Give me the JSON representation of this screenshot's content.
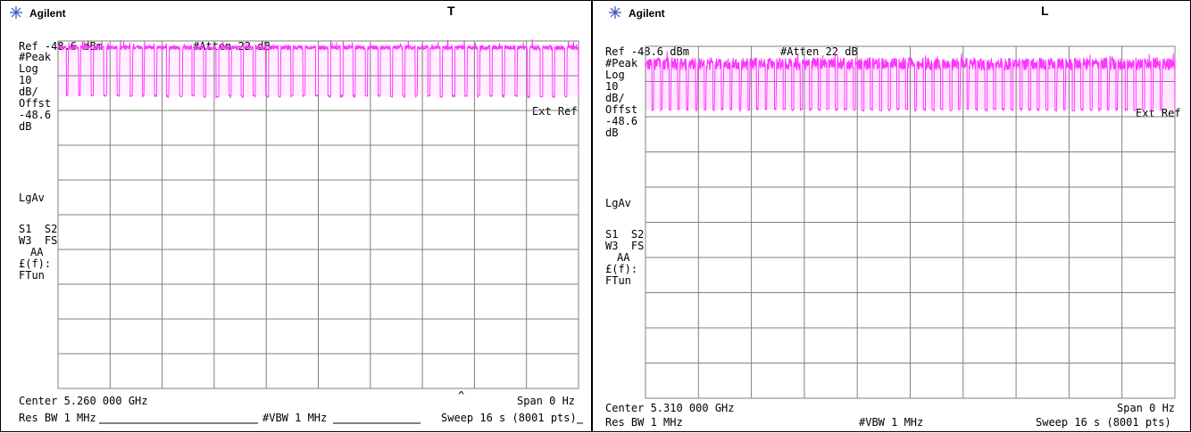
{
  "colors": {
    "trace": "#ff33ff",
    "grid": "#808080",
    "frame": "#000000",
    "logo": "#3b4fb8"
  },
  "panels": [
    {
      "brand": "Agilent",
      "trace_label": "T",
      "ref": "Ref -48.6 dBm",
      "atten": "#Atten 22 dB",
      "left_labels": [
        "#Peak",
        "Log",
        "10",
        "dB/",
        "Offst",
        "-48.6",
        "dB",
        "LgAv",
        "S1  S2",
        "W3  FS",
        "AA",
        "£(f):",
        "FTun"
      ],
      "ext_ref": "Ext Ref",
      "center": "Center 5.260 000 GHz",
      "span": "Span 0 Hz",
      "res_bw": "Res BW 1 MHz",
      "vbw": "#VBW 1 MHz",
      "sweep": "Sweep 16 s (8001 pts)",
      "caret": "^"
    },
    {
      "brand": "Agilent",
      "trace_label": "L",
      "ref": "Ref -48.6 dBm",
      "atten": "#Atten 22 dB",
      "left_labels": [
        "#Peak",
        "Log",
        "10",
        "dB/",
        "Offst",
        "-48.6",
        "dB",
        "LgAv",
        "S1  S2",
        "W3  FS",
        "AA",
        "£(f):",
        "FTun"
      ],
      "ext_ref": "Ext Ref",
      "center": "Center 5.310 000 GHz",
      "span": "Span 0 Hz",
      "res_bw": "Res BW 1 MHz",
      "vbw": "#VBW 1 MHz",
      "sweep": "Sweep 16 s (8001 pts)",
      "caret": ""
    }
  ],
  "chart_data": [
    {
      "type": "line",
      "trace_label": "T",
      "x_unit": "s",
      "xlim": [
        0,
        16
      ],
      "ylim": [
        -148.6,
        -48.6
      ],
      "ydiv": 10,
      "xdiv": 10,
      "grid": true,
      "high_level_dbm": -50.5,
      "low_level_dbm": -64.5,
      "bursts_s": [
        [
          0.0,
          0.26
        ],
        [
          0.32,
          0.64
        ],
        [
          0.7,
          1.02
        ],
        [
          1.09,
          1.41
        ],
        [
          1.5,
          1.82
        ],
        [
          1.9,
          2.22
        ],
        [
          2.3,
          2.6
        ],
        [
          2.66,
          2.97
        ],
        [
          3.04,
          3.34
        ],
        [
          3.42,
          3.74
        ],
        [
          3.83,
          4.12
        ],
        [
          4.18,
          4.48
        ],
        [
          4.55,
          4.86
        ],
        [
          4.94,
          5.26
        ],
        [
          5.33,
          5.63
        ],
        [
          5.7,
          6.0
        ],
        [
          6.07,
          6.39
        ],
        [
          6.47,
          6.78
        ],
        [
          6.85,
          7.16
        ],
        [
          7.22,
          7.53
        ],
        [
          7.6,
          7.92
        ],
        [
          8.0,
          8.3
        ],
        [
          8.38,
          8.68
        ],
        [
          8.76,
          9.07
        ],
        [
          9.14,
          9.45
        ],
        [
          9.52,
          9.84
        ],
        [
          9.91,
          10.22
        ],
        [
          10.29,
          10.6
        ],
        [
          10.67,
          10.98
        ],
        [
          11.05,
          11.37
        ],
        [
          11.44,
          11.75
        ],
        [
          11.82,
          12.12
        ],
        [
          12.2,
          12.51
        ],
        [
          12.58,
          12.9
        ],
        [
          12.97,
          13.28
        ],
        [
          13.35,
          13.66
        ],
        [
          13.73,
          14.05
        ],
        [
          14.12,
          14.43
        ],
        [
          14.5,
          14.82
        ],
        [
          14.9,
          15.2
        ],
        [
          15.27,
          15.58
        ],
        [
          15.65,
          16.0
        ]
      ]
    },
    {
      "type": "line",
      "trace_label": "L",
      "x_unit": "s",
      "xlim": [
        0,
        16
      ],
      "ylim": [
        -148.6,
        -48.6
      ],
      "ydiv": 10,
      "xdiv": 10,
      "grid": true,
      "high_level_dbm": -53.6,
      "low_level_dbm": -66.6,
      "bursts_s": [
        [
          0.0,
          0.2
        ],
        [
          0.25,
          0.46
        ],
        [
          0.52,
          0.72
        ],
        [
          0.78,
          0.98
        ],
        [
          1.04,
          1.24
        ],
        [
          1.3,
          1.52
        ],
        [
          1.58,
          1.78
        ],
        [
          1.84,
          2.04
        ],
        [
          2.1,
          2.3
        ],
        [
          2.36,
          2.56
        ],
        [
          2.62,
          2.84
        ],
        [
          2.9,
          3.1
        ],
        [
          3.16,
          3.36
        ],
        [
          3.42,
          3.62
        ],
        [
          3.68,
          3.9
        ],
        [
          3.96,
          4.16
        ],
        [
          4.22,
          4.42
        ],
        [
          4.48,
          4.68
        ],
        [
          4.74,
          4.96
        ],
        [
          5.02,
          5.22
        ],
        [
          5.28,
          5.48
        ],
        [
          5.54,
          5.74
        ],
        [
          5.8,
          6.02
        ],
        [
          6.08,
          6.28
        ],
        [
          6.34,
          6.54
        ],
        [
          6.6,
          6.8
        ],
        [
          6.86,
          7.08
        ],
        [
          7.14,
          7.34
        ],
        [
          7.4,
          7.6
        ],
        [
          7.66,
          7.86
        ],
        [
          7.92,
          8.14
        ],
        [
          8.2,
          8.4
        ],
        [
          8.46,
          8.66
        ],
        [
          8.72,
          8.92
        ],
        [
          8.98,
          9.2
        ],
        [
          9.26,
          9.46
        ],
        [
          9.52,
          9.72
        ],
        [
          9.78,
          9.98
        ],
        [
          10.04,
          10.26
        ],
        [
          10.32,
          10.52
        ],
        [
          10.58,
          10.78
        ],
        [
          10.84,
          11.04
        ],
        [
          11.1,
          11.32
        ],
        [
          11.38,
          11.58
        ],
        [
          11.64,
          11.84
        ],
        [
          11.9,
          12.1
        ],
        [
          12.16,
          12.38
        ],
        [
          12.44,
          12.64
        ],
        [
          12.7,
          12.9
        ],
        [
          12.96,
          13.16
        ],
        [
          13.22,
          13.44
        ],
        [
          13.5,
          13.7
        ],
        [
          13.76,
          13.96
        ],
        [
          14.02,
          14.22
        ],
        [
          14.28,
          14.5
        ],
        [
          14.56,
          14.76
        ],
        [
          14.82,
          15.02
        ],
        [
          15.08,
          15.28
        ],
        [
          15.34,
          15.56
        ],
        [
          15.62,
          16.0
        ]
      ]
    }
  ]
}
